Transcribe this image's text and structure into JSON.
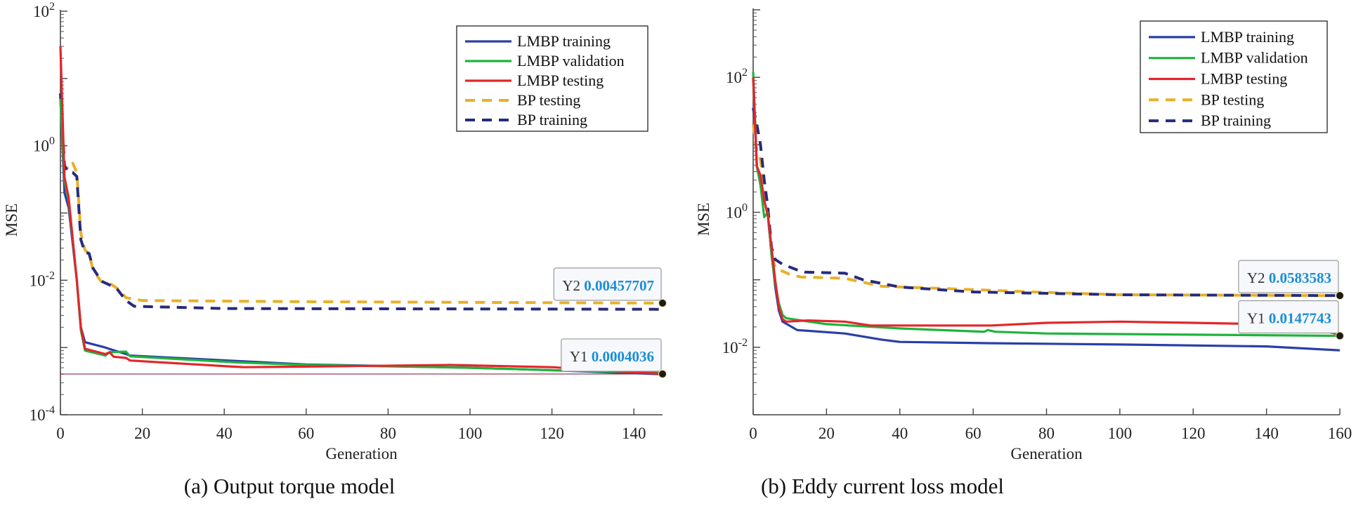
{
  "chart_data": [
    {
      "type": "line",
      "title": "(a) Output torque model",
      "xlabel": "Generation",
      "ylabel": "MSE",
      "xlim": [
        0,
        147
      ],
      "ylim": [
        0.0001,
        100
      ],
      "yscale": "log",
      "grid": false,
      "xticks": [
        0,
        20,
        40,
        60,
        80,
        100,
        120,
        140
      ],
      "ytick_exponents": [
        2,
        0,
        -2,
        -4
      ],
      "legend_position": "top-right",
      "reference_line": 0.0004036,
      "series": [
        {
          "name": "LMBP training",
          "color": "#2b3fa6",
          "style": "solid",
          "x": [
            0,
            1,
            2,
            4,
            5,
            6,
            11,
            12,
            16,
            17,
            43,
            60,
            100,
            120,
            147
          ],
          "y": [
            5,
            0.2,
            0.12,
            0.01,
            0.002,
            0.0012,
            0.001,
            0.00095,
            0.0008,
            0.00076,
            0.00063,
            0.00056,
            0.0005,
            0.00046,
            0.0004
          ]
        },
        {
          "name": "LMBP validation",
          "color": "#1fb33c",
          "style": "solid",
          "x": [
            0,
            1,
            2,
            4,
            5,
            6,
            11,
            12,
            16,
            17,
            43,
            60,
            100,
            120,
            147
          ],
          "y": [
            5,
            0.3,
            0.15,
            0.01,
            0.0018,
            0.0009,
            0.00076,
            0.00085,
            0.00087,
            0.00074,
            0.0006,
            0.00055,
            0.0005,
            0.00046,
            0.00042
          ]
        },
        {
          "name": "LMBP testing",
          "color": "#e3262a",
          "style": "solid",
          "x": [
            0,
            1,
            2,
            4,
            5,
            6,
            11,
            12,
            13,
            16,
            17,
            42,
            45,
            60,
            95,
            120,
            147
          ],
          "y": [
            30,
            0.34,
            0.17,
            0.01,
            0.002,
            0.00096,
            0.0008,
            0.00085,
            0.00073,
            0.0007,
            0.00064,
            0.00052,
            0.00051,
            0.00052,
            0.00055,
            0.00051,
            0.0004036
          ]
        },
        {
          "name": "BP testing",
          "color": "#e8b02a",
          "style": "dash",
          "x": [
            0,
            1,
            2,
            3,
            4,
            5,
            6,
            7,
            8,
            10,
            12,
            14,
            16,
            20,
            60,
            147
          ],
          "y": [
            6,
            0.5,
            0.45,
            0.55,
            0.4,
            0.05,
            0.028,
            0.025,
            0.014,
            0.0095,
            0.009,
            0.0075,
            0.0055,
            0.005,
            0.0048,
            0.00457707
          ]
        },
        {
          "name": "BP training",
          "color": "#262b7c",
          "style": "dash",
          "x": [
            0,
            1,
            2,
            3,
            4,
            5,
            6,
            7,
            8,
            10,
            12,
            14,
            16,
            18,
            40,
            147
          ],
          "y": [
            6,
            0.5,
            0.4,
            0.4,
            0.35,
            0.04,
            0.026,
            0.025,
            0.015,
            0.0097,
            0.0085,
            0.0072,
            0.005,
            0.0041,
            0.0038,
            0.0037
          ]
        }
      ],
      "datatips": [
        {
          "label": "Y2",
          "value": "0.00457707",
          "x": 147,
          "y": 0.00457707
        },
        {
          "label": "Y1",
          "value": "0.0004036",
          "x": 147,
          "y": 0.0004036
        }
      ]
    },
    {
      "type": "line",
      "title": "(b) Eddy current loss model",
      "xlabel": "Generation",
      "ylabel": "MSE",
      "xlim": [
        0,
        160
      ],
      "ylim": [
        0.001,
        1000
      ],
      "yscale": "log",
      "grid": false,
      "xticks": [
        0,
        20,
        40,
        60,
        80,
        100,
        120,
        140,
        160
      ],
      "ytick_exponents": [
        2,
        0,
        -2
      ],
      "legend_position": "top-right",
      "series": [
        {
          "name": "LMBP training",
          "color": "#2b3fa6",
          "style": "solid",
          "x": [
            0,
            1,
            2,
            3,
            4,
            5,
            6,
            7,
            8,
            12,
            25,
            35,
            40,
            64,
            100,
            140,
            160
          ],
          "y": [
            100,
            4.8,
            3.5,
            1.5,
            0.9,
            0.25,
            0.08,
            0.035,
            0.024,
            0.018,
            0.016,
            0.013,
            0.012,
            0.0115,
            0.011,
            0.0103,
            0.009
          ]
        },
        {
          "name": "LMBP validation",
          "color": "#1fb33c",
          "style": "solid",
          "x": [
            0,
            1,
            2,
            3,
            4,
            5,
            6,
            7,
            8,
            9,
            20,
            40,
            63,
            64,
            66,
            80,
            160
          ],
          "y": [
            120,
            4.8,
            2.5,
            0.85,
            1.0,
            0.23,
            0.09,
            0.045,
            0.03,
            0.027,
            0.022,
            0.019,
            0.017,
            0.018,
            0.017,
            0.016,
            0.0147743
          ]
        },
        {
          "name": "LMBP testing",
          "color": "#e3262a",
          "style": "solid",
          "x": [
            0,
            1,
            2,
            3,
            4,
            5,
            6,
            7,
            8,
            9,
            15,
            25,
            32,
            60,
            65,
            80,
            100,
            120,
            140,
            150,
            160
          ],
          "y": [
            100,
            4.8,
            3.5,
            1.5,
            0.9,
            0.3,
            0.1,
            0.04,
            0.026,
            0.024,
            0.025,
            0.024,
            0.021,
            0.021,
            0.021,
            0.023,
            0.024,
            0.023,
            0.022,
            0.02,
            0.0155
          ]
        },
        {
          "name": "BP testing",
          "color": "#e8b02a",
          "style": "dash",
          "x": [
            0,
            1,
            2,
            3,
            4,
            5,
            6,
            10,
            13,
            25,
            35,
            50,
            80,
            100,
            160
          ],
          "y": [
            20,
            8,
            6,
            2,
            1,
            0.25,
            0.15,
            0.12,
            0.11,
            0.105,
            0.08,
            0.075,
            0.065,
            0.06,
            0.0583583
          ]
        },
        {
          "name": "BP training",
          "color": "#262b7c",
          "style": "dash",
          "x": [
            0,
            1,
            2,
            3,
            4,
            5,
            6,
            8,
            12,
            14,
            25,
            30,
            40,
            60,
            100,
            160
          ],
          "y": [
            35,
            20,
            10,
            3,
            1.2,
            0.3,
            0.2,
            0.17,
            0.14,
            0.13,
            0.125,
            0.1,
            0.078,
            0.066,
            0.06,
            0.0583583
          ]
        }
      ],
      "datatips": [
        {
          "label": "Y2",
          "value": "0.0583583",
          "x": 160,
          "y": 0.0583583
        },
        {
          "label": "Y1",
          "value": "0.0147743",
          "x": 160,
          "y": 0.0147743
        }
      ]
    }
  ]
}
